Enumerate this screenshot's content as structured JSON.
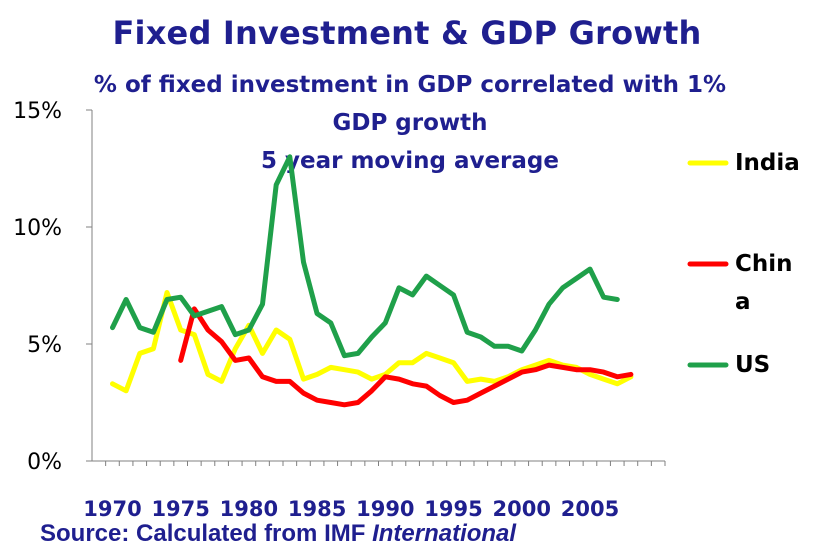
{
  "chart_data": {
    "type": "line",
    "title": "Fixed Investment & GDP Growth",
    "subtitle": "% of fixed investment in GDP correlated with 1% GDP growth 5 year moving average",
    "x": [
      1970,
      1971,
      1972,
      1973,
      1974,
      1975,
      1976,
      1977,
      1978,
      1979,
      1980,
      1981,
      1982,
      1983,
      1984,
      1985,
      1986,
      1987,
      1988,
      1989,
      1990,
      1991,
      1992,
      1993,
      1994,
      1995,
      1996,
      1997,
      1998,
      1999,
      2000,
      2001,
      2002,
      2003,
      2004,
      2005,
      2006,
      2007,
      2008
    ],
    "series": [
      {
        "name": "India",
        "color": "#FFFF00",
        "values": [
          3.3,
          3.0,
          4.6,
          4.8,
          7.2,
          5.6,
          5.4,
          3.7,
          3.4,
          4.8,
          5.8,
          4.6,
          5.6,
          5.2,
          3.5,
          3.7,
          4.0,
          3.9,
          3.8,
          3.5,
          3.7,
          4.2,
          4.2,
          4.6,
          4.4,
          4.2,
          3.4,
          3.5,
          3.4,
          3.6,
          3.9,
          4.1,
          4.3,
          4.1,
          4.0,
          3.7,
          3.5,
          3.3,
          3.6
        ]
      },
      {
        "name": "China",
        "color": "#FF0000",
        "values": [
          null,
          null,
          null,
          null,
          null,
          4.3,
          6.5,
          5.6,
          5.1,
          4.3,
          4.4,
          3.6,
          3.4,
          3.4,
          2.9,
          2.6,
          2.5,
          2.4,
          2.5,
          3.0,
          3.6,
          3.5,
          3.3,
          3.2,
          2.8,
          2.5,
          2.6,
          2.9,
          3.2,
          3.5,
          3.8,
          3.9,
          4.1,
          4.0,
          3.9,
          3.9,
          3.8,
          3.6,
          3.7
        ]
      },
      {
        "name": "US",
        "color": "#1FA04A",
        "values": [
          5.7,
          6.9,
          5.7,
          5.5,
          6.9,
          7.0,
          6.2,
          6.4,
          6.6,
          5.4,
          5.6,
          6.7,
          11.8,
          13.0,
          8.5,
          6.3,
          5.9,
          4.5,
          4.6,
          5.3,
          5.9,
          7.4,
          7.1,
          7.9,
          7.5,
          7.1,
          5.5,
          5.3,
          4.9,
          4.9,
          4.7,
          5.6,
          6.7,
          7.4,
          7.8,
          8.2,
          7.0,
          6.9,
          null
        ]
      }
    ],
    "xlim": [
      1968.5,
      2010.5
    ],
    "ylim": [
      0,
      15
    ],
    "xticks": [
      1970,
      1975,
      1980,
      1985,
      1990,
      1995,
      2000,
      2005
    ],
    "yticks": [
      0,
      5,
      10,
      15
    ],
    "ytick_labels": [
      "0%",
      "5%",
      "10%",
      "15%"
    ],
    "grid": false,
    "legend_position": "right"
  },
  "legend": {
    "india": "India",
    "china_line1": "Chin",
    "china_line2": "a",
    "us": "US"
  },
  "header": {
    "title": "Fixed Investment & GDP Growth",
    "subtitle_line1": "% of fixed investment in GDP correlated with 1%",
    "subtitle_line2": "GDP growth",
    "subtitle_line3": "5 year moving average"
  },
  "footer": {
    "source_prefix": "Source: Calculated from IMF ",
    "source_italic": "International"
  }
}
